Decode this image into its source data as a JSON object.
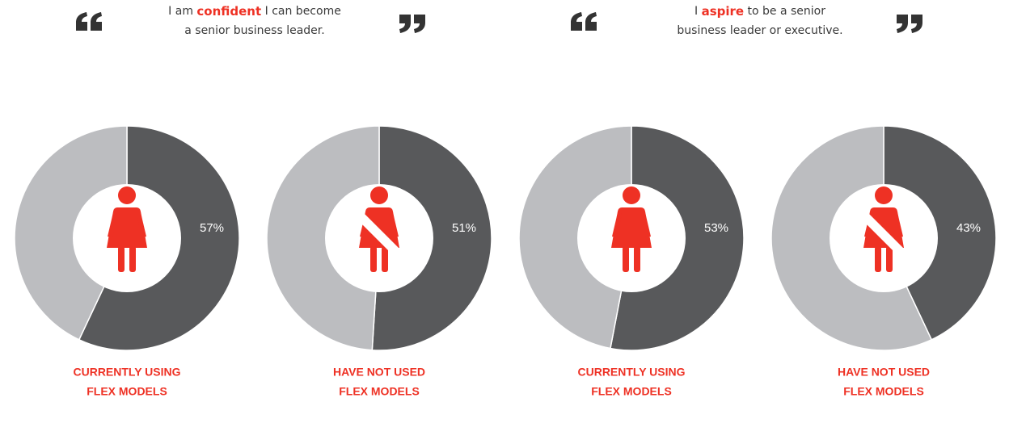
{
  "quotes": [
    {
      "before": "I am ",
      "emphasis": "confident",
      "after": " I can become",
      "line2": "a senior business leader."
    },
    {
      "before": "I ",
      "emphasis": "aspire",
      "after": " to be a senior",
      "line2": "business leader or executive."
    }
  ],
  "chart_data": [
    {
      "type": "pie",
      "values": [
        57,
        43
      ],
      "value_labels": [
        "57%",
        null
      ],
      "colors": [
        "#58595b",
        "#bcbdc0"
      ],
      "icon_crossed": false,
      "caption": [
        "CURRENTLY USING",
        "FLEX MODELS"
      ]
    },
    {
      "type": "pie",
      "values": [
        51,
        49
      ],
      "value_labels": [
        "51%",
        null
      ],
      "colors": [
        "#58595b",
        "#bcbdc0"
      ],
      "icon_crossed": true,
      "caption": [
        "HAVE NOT USED",
        "FLEX MODELS"
      ]
    },
    {
      "type": "pie",
      "values": [
        53,
        47
      ],
      "value_labels": [
        "53%",
        null
      ],
      "colors": [
        "#58595b",
        "#bcbdc0"
      ],
      "icon_crossed": false,
      "caption": [
        "CURRENTLY USING",
        "FLEX MODELS"
      ]
    },
    {
      "type": "pie",
      "values": [
        43,
        57
      ],
      "value_labels": [
        "43%",
        null
      ],
      "colors": [
        "#58595b",
        "#bcbdc0"
      ],
      "icon_crossed": true,
      "caption": [
        "HAVE NOT USED",
        "FLEX MODELS"
      ]
    }
  ]
}
